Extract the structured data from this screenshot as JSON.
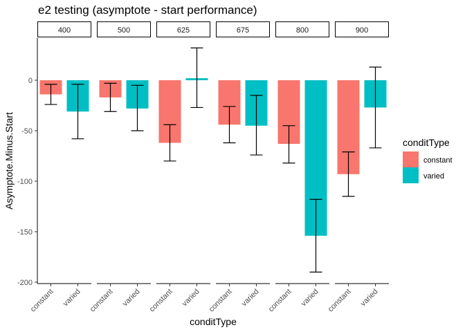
{
  "chart_data": {
    "type": "bar",
    "title": "e2 testing (asymptote - start performance)",
    "xlabel": "conditType",
    "ylabel": "Asymptote.Minus.Start",
    "ylim": [
      -200,
      40
    ],
    "yticks": [
      0,
      -50,
      -100,
      -150,
      -200
    ],
    "categories": [
      "constant",
      "varied"
    ],
    "facets": [
      {
        "label": "400",
        "values": [
          -14,
          -31
        ],
        "err_low": [
          -24,
          -58
        ],
        "err_high": [
          -4,
          -4
        ]
      },
      {
        "label": "500",
        "values": [
          -17,
          -28
        ],
        "err_low": [
          -31,
          -50
        ],
        "err_high": [
          -3,
          -5
        ]
      },
      {
        "label": "625",
        "values": [
          -62,
          2
        ],
        "err_low": [
          -80,
          -27
        ],
        "err_high": [
          -44,
          32
        ]
      },
      {
        "label": "675",
        "values": [
          -44,
          -45
        ],
        "err_low": [
          -62,
          -74
        ],
        "err_high": [
          -26,
          -15
        ]
      },
      {
        "label": "800",
        "values": [
          -63,
          -154
        ],
        "err_low": [
          -82,
          -190
        ],
        "err_high": [
          -45,
          -118
        ]
      },
      {
        "label": "900",
        "values": [
          -93,
          -27
        ],
        "err_low": [
          -115,
          -67
        ],
        "err_high": [
          -71,
          13
        ]
      }
    ],
    "legend": {
      "title": "conditType",
      "position": "right",
      "items": [
        {
          "label": "constant",
          "color": "#F8766D"
        },
        {
          "label": "varied",
          "color": "#00BFC4"
        }
      ]
    },
    "grid": false
  }
}
